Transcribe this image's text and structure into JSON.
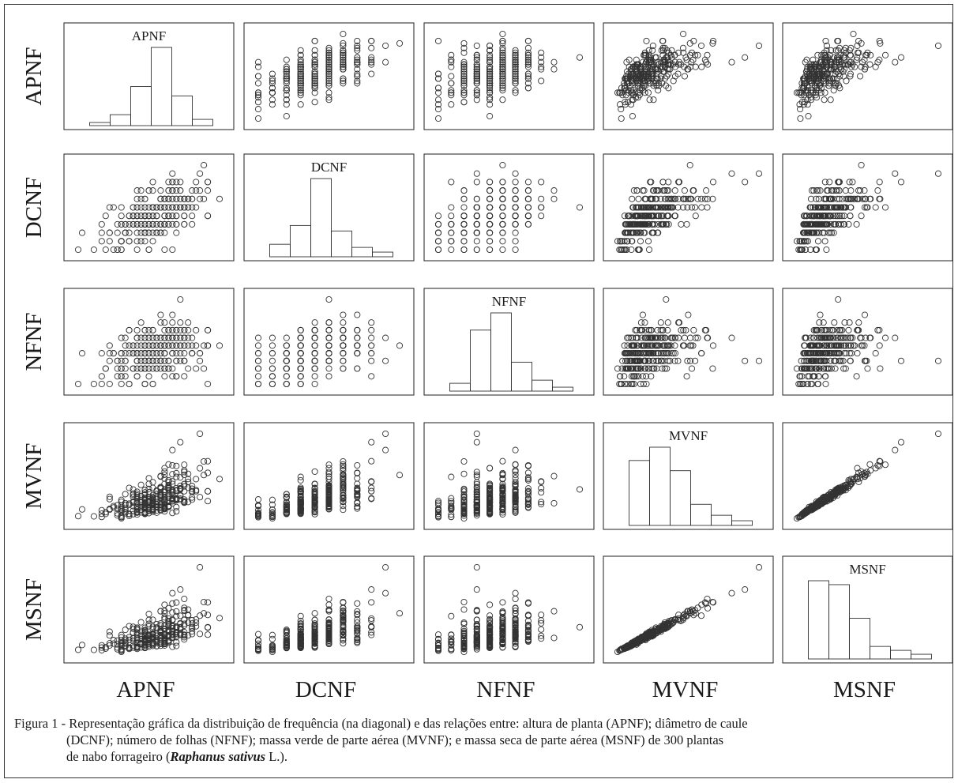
{
  "variables": [
    "APNF",
    "DCNF",
    "NFNF",
    "MVNF",
    "MSNF"
  ],
  "chart_data": {
    "type": "scatter",
    "layout": "scatterplot-matrix",
    "variables": [
      "APNF",
      "DCNF",
      "NFNF",
      "MVNF",
      "MSNF"
    ],
    "n_observations": 300,
    "diagonal": "histogram",
    "histograms": {
      "APNF": [
        0.04,
        0.14,
        0.5,
        1.0,
        0.38,
        0.08
      ],
      "DCNF": [
        0.16,
        0.4,
        1.0,
        0.33,
        0.12,
        0.06
      ],
      "NFNF": [
        0.1,
        0.78,
        1.0,
        0.37,
        0.14,
        0.05
      ],
      "MVNF": [
        0.83,
        1.0,
        0.7,
        0.27,
        0.13,
        0.06
      ],
      "MSNF": [
        1.0,
        0.95,
        0.52,
        0.16,
        0.11,
        0.06
      ]
    },
    "approx_correlations": {
      "APNF-DCNF": 0.55,
      "APNF-NFNF": 0.45,
      "APNF-MVNF": 0.55,
      "APNF-MSNF": 0.55,
      "DCNF-NFNF": 0.5,
      "DCNF-MVNF": 0.8,
      "DCNF-MSNF": 0.8,
      "NFNF-MVNF": 0.55,
      "NFNF-MSNF": 0.55,
      "MVNF-MSNF": 0.97
    },
    "grid": false,
    "legend": "none"
  },
  "caption": {
    "line1": "Figura 1 - Representação gráfica da distribuição de frequência (na diagonal) e das relações entre: altura de planta (APNF); diâmetro de caule",
    "line2": "(DCNF); número de folhas (NFNF); massa verde de parte aérea (MVNF); e massa seca de parte aérea (MSNF) de 300 plantas",
    "line3_pre": "de nabo forrageiro (",
    "line3_species": "Raphanus sativus",
    "line3_post": " L.)."
  }
}
